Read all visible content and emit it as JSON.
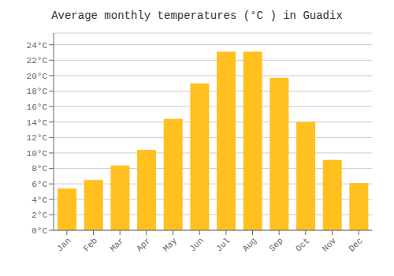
{
  "chart_data": {
    "type": "bar",
    "title": "Average monthly temperatures (°C ) in Guadix",
    "categories": [
      "Jan",
      "Feb",
      "Mar",
      "Apr",
      "May",
      "Jun",
      "Jul",
      "Aug",
      "Sep",
      "Oct",
      "Nov",
      "Dec"
    ],
    "values": [
      5.4,
      6.5,
      8.4,
      10.4,
      14.4,
      19.0,
      23.1,
      23.1,
      19.7,
      14.0,
      9.1,
      6.1
    ],
    "color": "#FFC020",
    "ylim": [
      0,
      25.5
    ],
    "yticks": [
      {
        "value": 0,
        "label": "0°C"
      },
      {
        "value": 2,
        "label": "2°C"
      },
      {
        "value": 4,
        "label": "4°C"
      },
      {
        "value": 6,
        "label": "6°C"
      },
      {
        "value": 8,
        "label": "8°C"
      },
      {
        "value": 10,
        "label": "10°C"
      },
      {
        "value": 12,
        "label": "12°C"
      },
      {
        "value": 14,
        "label": "14°C"
      },
      {
        "value": 16,
        "label": "16°C"
      },
      {
        "value": 18,
        "label": "18°C"
      },
      {
        "value": 20,
        "label": "20°C"
      },
      {
        "value": 22,
        "label": "22°C"
      },
      {
        "value": 24,
        "label": "24°C"
      }
    ],
    "grid": true
  }
}
